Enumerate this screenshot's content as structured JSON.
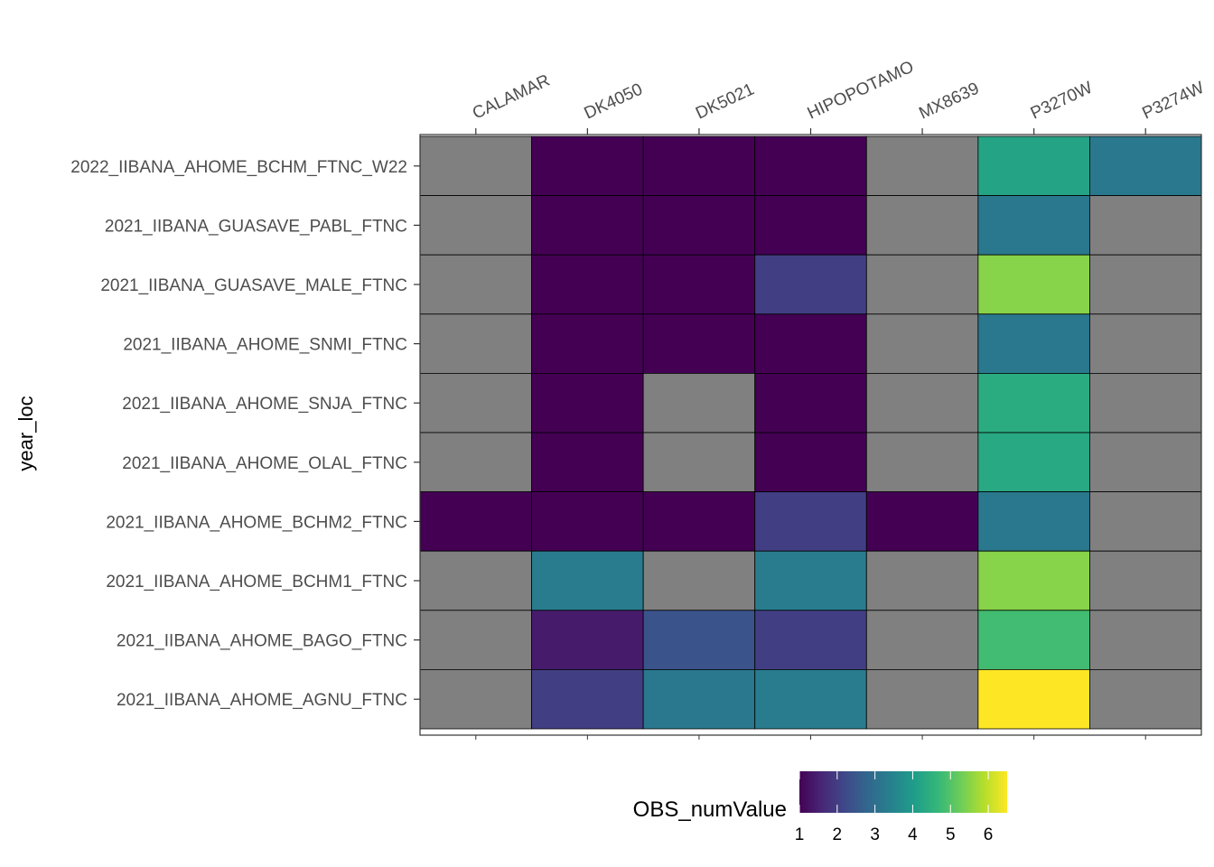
{
  "chart_data": {
    "type": "heatmap",
    "xlabel": "",
    "ylabel": "year_loc",
    "legend_title": "OBS_numValue",
    "legend_placement": "bottom",
    "grid": false,
    "colorscale": "viridis",
    "value_range": [
      1,
      6.5
    ],
    "legend_ticks": [
      1,
      2,
      3,
      4,
      5,
      6
    ],
    "missing_color": "#808080",
    "x_categories": [
      "CALAMAR",
      "DK4050",
      "DK5021",
      "HIPOPOTAMO",
      "MX8639",
      "P3270W",
      "P3274W"
    ],
    "y_categories": [
      "2022_IIBANA_AHOME_BCHM_FTNC_W22",
      "2021_IIBANA_GUASAVE_PABL_FTNC",
      "2021_IIBANA_GUASAVE_MALE_FTNC",
      "2021_IIBANA_AHOME_SNMI_FTNC",
      "2021_IIBANA_AHOME_SNJA_FTNC",
      "2021_IIBANA_AHOME_OLAL_FTNC",
      "2021_IIBANA_AHOME_BCHM2_FTNC",
      "2021_IIBANA_AHOME_BCHM1_FTNC",
      "2021_IIBANA_AHOME_BAGO_FTNC",
      "2021_IIBANA_AHOME_AGNU_FTNC"
    ],
    "values": [
      [
        null,
        1,
        1,
        1,
        null,
        4.2,
        3.2
      ],
      [
        null,
        1,
        1,
        1,
        null,
        3.2,
        null
      ],
      [
        null,
        1,
        1,
        2,
        null,
        5.5,
        null
      ],
      [
        null,
        1,
        1,
        1,
        null,
        3.2,
        null
      ],
      [
        null,
        1,
        null,
        1,
        null,
        4.4,
        null
      ],
      [
        null,
        1,
        null,
        1,
        null,
        4.3,
        null
      ],
      [
        1,
        1,
        1,
        2,
        1,
        3.2,
        null
      ],
      [
        null,
        3.3,
        null,
        3.3,
        null,
        5.5,
        null
      ],
      [
        null,
        1.4,
        2.4,
        2.0,
        null,
        4.8,
        null
      ],
      [
        null,
        2.0,
        3.2,
        3.3,
        null,
        6.5,
        null
      ]
    ]
  }
}
